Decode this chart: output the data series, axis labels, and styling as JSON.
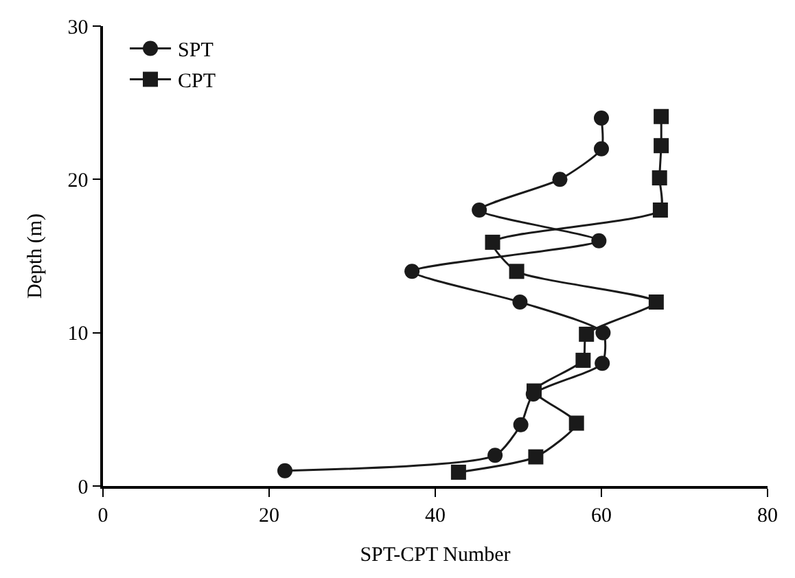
{
  "chart_data": {
    "type": "line",
    "xlabel": "SPT-CPT Number",
    "ylabel": "Depth (m)",
    "xlim": [
      0,
      80
    ],
    "xticks": [
      0,
      20,
      40,
      60,
      80
    ],
    "ylim": [
      0,
      30
    ],
    "yticks": [
      0,
      10,
      20,
      30
    ],
    "legend": "top left",
    "series": [
      {
        "name": "SPT",
        "color": "#1a1a1a",
        "marker": "circle",
        "x": [
          60,
          60,
          55,
          45.3,
          59.7,
          37.2,
          50.2,
          60.2,
          60.1,
          51.8,
          50.3,
          47.2,
          21.9
        ],
        "values": [
          24,
          22,
          20,
          18,
          16,
          14,
          12,
          10,
          8,
          6,
          4,
          2,
          1
        ]
      },
      {
        "name": "CPT",
        "color": "#1a1a1a",
        "marker": "square",
        "x": [
          67.2,
          67.2,
          67,
          67.1,
          46.9,
          49.8,
          66.6,
          58.2,
          57.8,
          51.9,
          57,
          52.1,
          42.8
        ],
        "values": [
          24.1,
          22.2,
          20.1,
          18,
          15.9,
          14,
          12,
          9.9,
          8.2,
          6.2,
          4.1,
          1.9,
          0.9
        ]
      }
    ]
  }
}
